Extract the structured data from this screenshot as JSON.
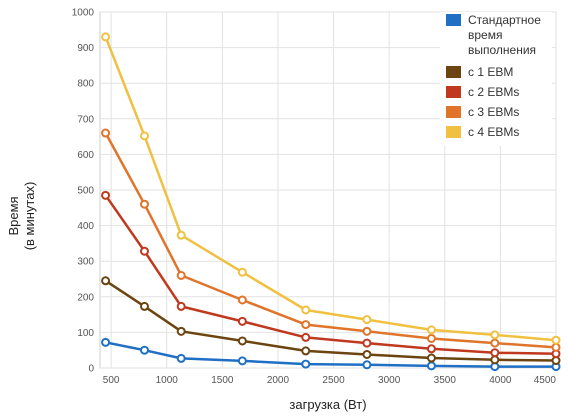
{
  "chart_data": {
    "type": "line",
    "title": "",
    "xlabel": "загрузка (Вт)",
    "ylabel": [
      "Время",
      "(в минутах)"
    ],
    "xlim": [
      400,
      4500
    ],
    "ylim": [
      0,
      1000
    ],
    "x_ticks": [
      500,
      1000,
      1500,
      2000,
      2500,
      3000,
      3500,
      4000,
      4500
    ],
    "y_ticks": [
      0,
      100,
      200,
      300,
      400,
      500,
      600,
      700,
      800,
      900,
      1000
    ],
    "grid": true,
    "legend_position": "top-right",
    "x": [
      450,
      800,
      1130,
      1680,
      2250,
      2800,
      3380,
      3950,
      4500
    ],
    "series": [
      {
        "name": [
          "Стандартное",
          "время",
          "выполнения"
        ],
        "color": "#1f6fc4",
        "values": [
          72,
          50,
          27,
          20,
          11,
          9,
          6,
          4,
          4
        ]
      },
      {
        "name": [
          "с 1 EBM"
        ],
        "color": "#6b4410",
        "values": [
          245,
          173,
          103,
          76,
          48,
          38,
          28,
          23,
          21
        ]
      },
      {
        "name": [
          "с 2 EBMs"
        ],
        "color": "#c0391f",
        "values": [
          485,
          328,
          173,
          131,
          86,
          70,
          54,
          43,
          40
        ]
      },
      {
        "name": [
          "с 3 EBMs"
        ],
        "color": "#e0742a",
        "values": [
          660,
          460,
          260,
          191,
          122,
          103,
          83,
          70,
          58
        ]
      },
      {
        "name": [
          "с 4 EBMs"
        ],
        "color": "#f0c040",
        "values": [
          930,
          652,
          373,
          269,
          163,
          136,
          107,
          93,
          78
        ]
      }
    ]
  }
}
